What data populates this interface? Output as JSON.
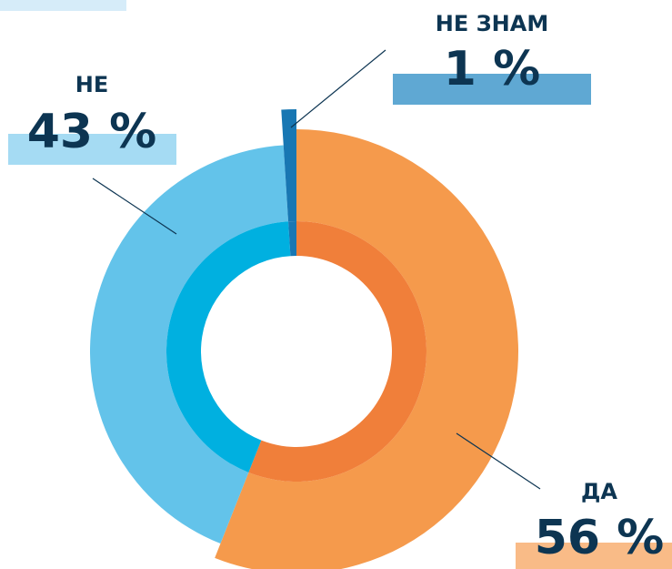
{
  "chart_data": {
    "type": "pie",
    "categories": [
      "ДА",
      "НЕ",
      "НЕ ЗНАМ"
    ],
    "values": [
      56,
      43,
      1
    ],
    "value_labels": [
      "56 %",
      "43 %",
      "1 %"
    ],
    "colors": [
      "#f59a4c",
      "#63c3ea",
      "#1877b3"
    ],
    "inner_colors": [
      "#f07f3a",
      "#00b0e0",
      "#1877b3"
    ]
  }
}
